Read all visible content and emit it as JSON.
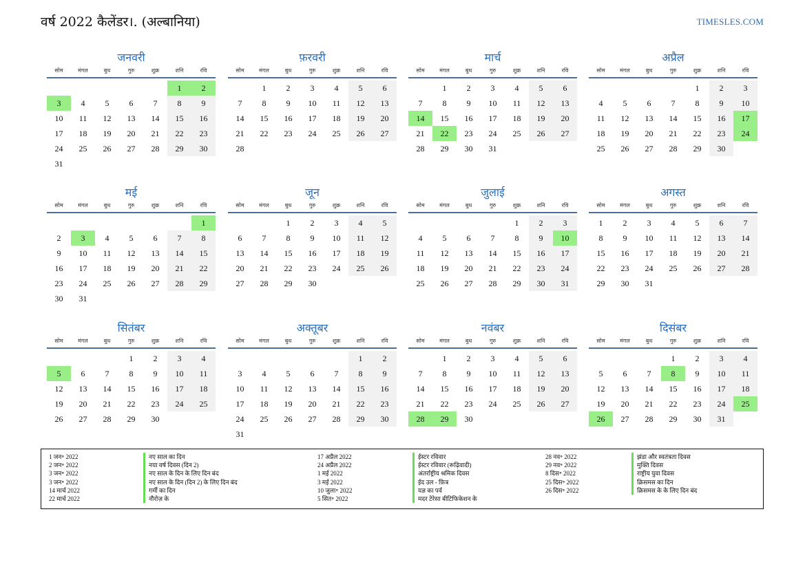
{
  "title": "वर्ष 2022 कैलेंडर।. (अल्बानिया)",
  "site": "TIMESLES.COM",
  "weekdays": [
    "सोम",
    "मंगल",
    "बुध",
    "गुरु",
    "शुक्र",
    "शनि",
    "रवि"
  ],
  "months": [
    {
      "name": "जनवरी",
      "offset": 5,
      "days": 31,
      "holidays": [
        1,
        2,
        3
      ]
    },
    {
      "name": "फ़रवरी",
      "offset": 1,
      "days": 28,
      "holidays": []
    },
    {
      "name": "मार्च",
      "offset": 1,
      "days": 31,
      "holidays": [
        14,
        22
      ]
    },
    {
      "name": "अप्रैल",
      "offset": 4,
      "days": 30,
      "holidays": [
        17,
        24
      ]
    },
    {
      "name": "मई",
      "offset": 6,
      "days": 31,
      "holidays": [
        1,
        3
      ]
    },
    {
      "name": "जून",
      "offset": 2,
      "days": 30,
      "holidays": []
    },
    {
      "name": "जुलाई",
      "offset": 4,
      "days": 31,
      "holidays": [
        10
      ]
    },
    {
      "name": "अगस्त",
      "offset": 0,
      "days": 31,
      "holidays": []
    },
    {
      "name": "सितंबर",
      "offset": 3,
      "days": 30,
      "holidays": [
        5
      ]
    },
    {
      "name": "अक्तूबर",
      "offset": 5,
      "days": 31,
      "holidays": []
    },
    {
      "name": "नवंबर",
      "offset": 1,
      "days": 30,
      "holidays": [
        28,
        29
      ]
    },
    {
      "name": "दिसंबर",
      "offset": 3,
      "days": 31,
      "holidays": [
        8,
        25,
        26
      ]
    }
  ],
  "holidays": [
    {
      "date": "1 जन॰ 2022",
      "name": "नए साल का दिन"
    },
    {
      "date": "2 जन॰ 2022",
      "name": "नया वर्ष दिवस (दिन 2)"
    },
    {
      "date": "3 जन॰ 2022",
      "name": "नए साल के दिन के लिए दिन बंद"
    },
    {
      "date": "3 जन॰ 2022",
      "name": "नए साल के दिन (दिन 2) के लिए दिन बंद"
    },
    {
      "date": "14 मार्च 2022",
      "name": "गर्मी का दिन"
    },
    {
      "date": "22 मार्च 2022",
      "name": "नौरोज़ के"
    },
    {
      "date": "17 अप्रैल 2022",
      "name": "ईस्टर रविवार"
    },
    {
      "date": "24 अप्रैल 2022",
      "name": "ईस्टर रविवार (रूढ़िवादी)"
    },
    {
      "date": "1 मई 2022",
      "name": "अंतर्राष्ट्रीय श्रमिक दिवस"
    },
    {
      "date": "3 मई 2022",
      "name": "ईद उल - फ़ित्र"
    },
    {
      "date": "10 जुला॰ 2022",
      "name": "यज्ञ का पर्व"
    },
    {
      "date": "5 सित॰ 2022",
      "name": "मदर टेरेसा बीटिफिकेशन के"
    },
    {
      "date": "28 नव॰ 2022",
      "name": "झंडा और स्वतंत्रता दिवस"
    },
    {
      "date": "29 नव॰ 2022",
      "name": "मुक्ति दिवस"
    },
    {
      "date": "8 दिस॰ 2022",
      "name": "राष्ट्रीय युवा दिवस"
    },
    {
      "date": "25 दिस॰ 2022",
      "name": "क्रिसमस का दिन"
    },
    {
      "date": "26 दिस॰ 2022",
      "name": "क्रिसमस के के लिए दिन बंद"
    }
  ]
}
